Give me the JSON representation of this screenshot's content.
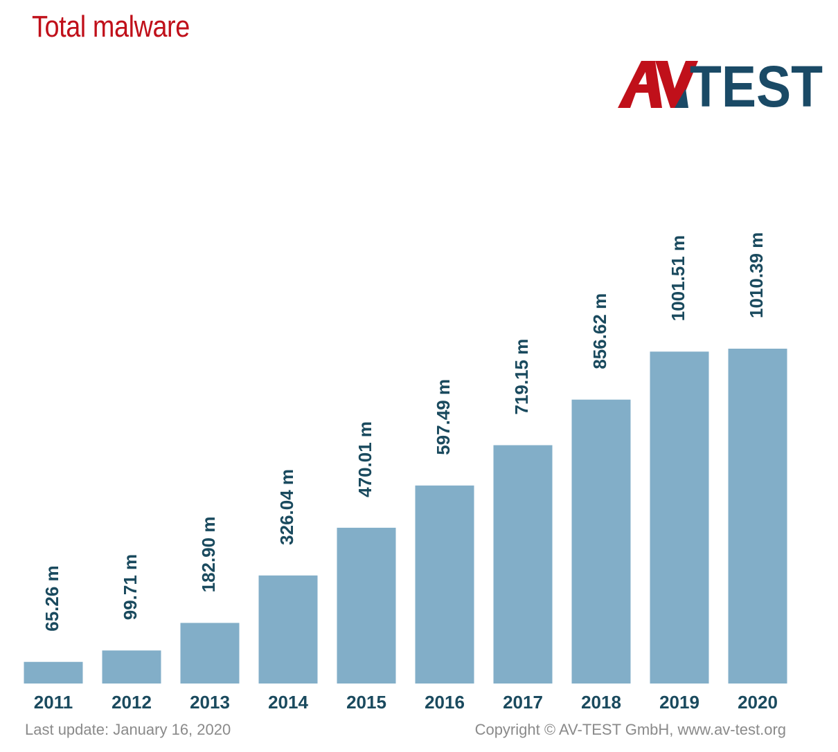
{
  "title": "Total malware",
  "logo": {
    "part1": "AV",
    "part2": "TEST",
    "red": "#c0101a",
    "blue": "#1a4a66"
  },
  "footer": {
    "last_update": "Last update: January 16, 2020",
    "copyright": "Copyright © AV-TEST GmbH, www.av-test.org"
  },
  "colors": {
    "bar": "#82aec8",
    "label": "#1a4a5e",
    "title": "#c0101a"
  },
  "chart_data": {
    "type": "bar",
    "title": "Total malware",
    "categories": [
      "2011",
      "2012",
      "2013",
      "2014",
      "2015",
      "2016",
      "2017",
      "2018",
      "2019",
      "2020"
    ],
    "values": [
      65.26,
      99.71,
      182.9,
      326.04,
      470.01,
      597.49,
      719.15,
      856.62,
      1001.51,
      1010.39
    ],
    "value_labels": [
      "65.26 m",
      "99.71 m",
      "182.90 m",
      "326.04 m",
      "470.01 m",
      "597.49 m",
      "719.15 m",
      "856.62 m",
      "1001.51 m",
      "1010.39 m"
    ],
    "unit": "m",
    "ylim": [
      0,
      1010.39
    ],
    "grid": false
  }
}
